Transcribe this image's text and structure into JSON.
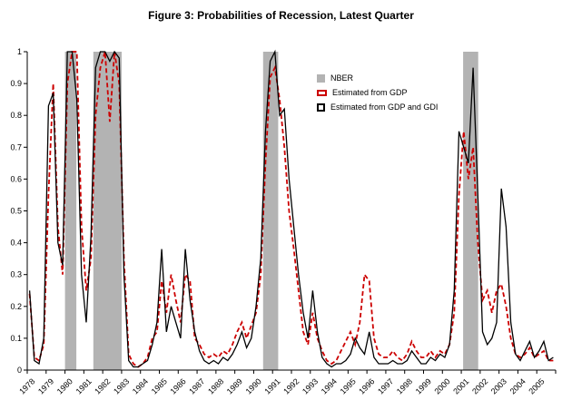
{
  "figure": {
    "title": "Figure 3: Probabilities of Recession, Latest Quarter"
  },
  "chart_data": {
    "type": "line",
    "title": "Figure 3: Probabilities of Recession, Latest Quarter",
    "xlabel": "",
    "ylabel": "",
    "ylim": [
      0,
      1
    ],
    "grid": false,
    "legend_position": "top-center-inside",
    "x_start_year": 1978,
    "quarters_per_year": 4,
    "y_ticks": [
      "0",
      "0.1",
      "0.2",
      "0.3",
      "0.4",
      "0.5",
      "0.6",
      "0.7",
      "0.8",
      "0.9",
      "1"
    ],
    "x_tick_years": [
      "1978",
      "1979",
      "1980",
      "1981",
      "1982",
      "1983",
      "1984",
      "1985",
      "1986",
      "1987",
      "1988",
      "1989",
      "1990",
      "1991",
      "1992",
      "1993",
      "1994",
      "1995",
      "1996",
      "1997",
      "1998",
      "1999",
      "2000",
      "2001",
      "2002",
      "2003",
      "2004",
      "2005"
    ],
    "colors": {
      "nber_band": "#b3b3b3",
      "gdp_line": "#cc0000",
      "gdi_line": "#000000"
    },
    "recession_bands": [
      {
        "start": 1980.0,
        "end": 1980.6
      },
      {
        "start": 1981.5,
        "end": 1983.0
      },
      {
        "start": 1990.5,
        "end": 1991.3
      },
      {
        "start": 2001.1,
        "end": 2001.9
      }
    ],
    "legend": [
      {
        "label": "NBER",
        "type": "area",
        "color": "#b3b3b3"
      },
      {
        "label": "Estimated from GDP",
        "type": "dashed-line",
        "color": "#cc0000"
      },
      {
        "label": "Estimated from GDP and GDI",
        "type": "solid-line",
        "color": "#000000"
      }
    ],
    "series": [
      {
        "name": "Estimated from GDP",
        "color": "#cc0000",
        "dash": "5,3",
        "width": 1.8,
        "values": [
          0.24,
          0.04,
          0.03,
          0.08,
          0.55,
          0.9,
          0.45,
          0.3,
          0.9,
          1.0,
          1.0,
          0.45,
          0.25,
          0.35,
          0.8,
          0.95,
          1.0,
          0.78,
          1.0,
          0.9,
          0.35,
          0.05,
          0.02,
          0.01,
          0.02,
          0.04,
          0.1,
          0.12,
          0.28,
          0.18,
          0.3,
          0.22,
          0.15,
          0.3,
          0.28,
          0.1,
          0.08,
          0.05,
          0.04,
          0.05,
          0.04,
          0.06,
          0.05,
          0.08,
          0.12,
          0.15,
          0.1,
          0.14,
          0.18,
          0.3,
          0.65,
          0.92,
          0.95,
          0.85,
          0.7,
          0.5,
          0.38,
          0.25,
          0.12,
          0.08,
          0.18,
          0.1,
          0.06,
          0.03,
          0.02,
          0.03,
          0.06,
          0.09,
          0.12,
          0.08,
          0.15,
          0.3,
          0.28,
          0.1,
          0.05,
          0.04,
          0.04,
          0.06,
          0.04,
          0.03,
          0.05,
          0.09,
          0.06,
          0.04,
          0.04,
          0.06,
          0.04,
          0.06,
          0.05,
          0.08,
          0.18,
          0.55,
          0.75,
          0.6,
          0.7,
          0.4,
          0.22,
          0.25,
          0.18,
          0.25,
          0.27,
          0.2,
          0.1,
          0.05,
          0.04,
          0.05,
          0.07,
          0.04,
          0.05,
          0.06,
          0.03,
          0.03
        ]
      },
      {
        "name": "Estimated from GDP and GDI",
        "color": "#000000",
        "dash": "",
        "width": 1.3,
        "values": [
          0.25,
          0.03,
          0.02,
          0.1,
          0.83,
          0.87,
          0.4,
          0.33,
          1.0,
          1.0,
          0.85,
          0.3,
          0.15,
          0.42,
          0.95,
          1.0,
          1.0,
          0.97,
          1.0,
          0.98,
          0.3,
          0.03,
          0.01,
          0.01,
          0.02,
          0.03,
          0.08,
          0.15,
          0.38,
          0.12,
          0.2,
          0.15,
          0.1,
          0.38,
          0.22,
          0.12,
          0.06,
          0.03,
          0.02,
          0.03,
          0.02,
          0.04,
          0.03,
          0.05,
          0.08,
          0.12,
          0.07,
          0.1,
          0.2,
          0.35,
          0.75,
          0.97,
          1.0,
          0.8,
          0.82,
          0.6,
          0.45,
          0.3,
          0.18,
          0.1,
          0.25,
          0.12,
          0.04,
          0.02,
          0.01,
          0.02,
          0.02,
          0.03,
          0.05,
          0.1,
          0.07,
          0.05,
          0.12,
          0.04,
          0.02,
          0.02,
          0.02,
          0.03,
          0.02,
          0.02,
          0.03,
          0.06,
          0.04,
          0.02,
          0.02,
          0.04,
          0.03,
          0.05,
          0.04,
          0.08,
          0.25,
          0.75,
          0.7,
          0.65,
          0.95,
          0.55,
          0.12,
          0.08,
          0.1,
          0.15,
          0.57,
          0.45,
          0.15,
          0.05,
          0.03,
          0.06,
          0.09,
          0.04,
          0.06,
          0.09,
          0.03,
          0.04
        ]
      }
    ]
  }
}
